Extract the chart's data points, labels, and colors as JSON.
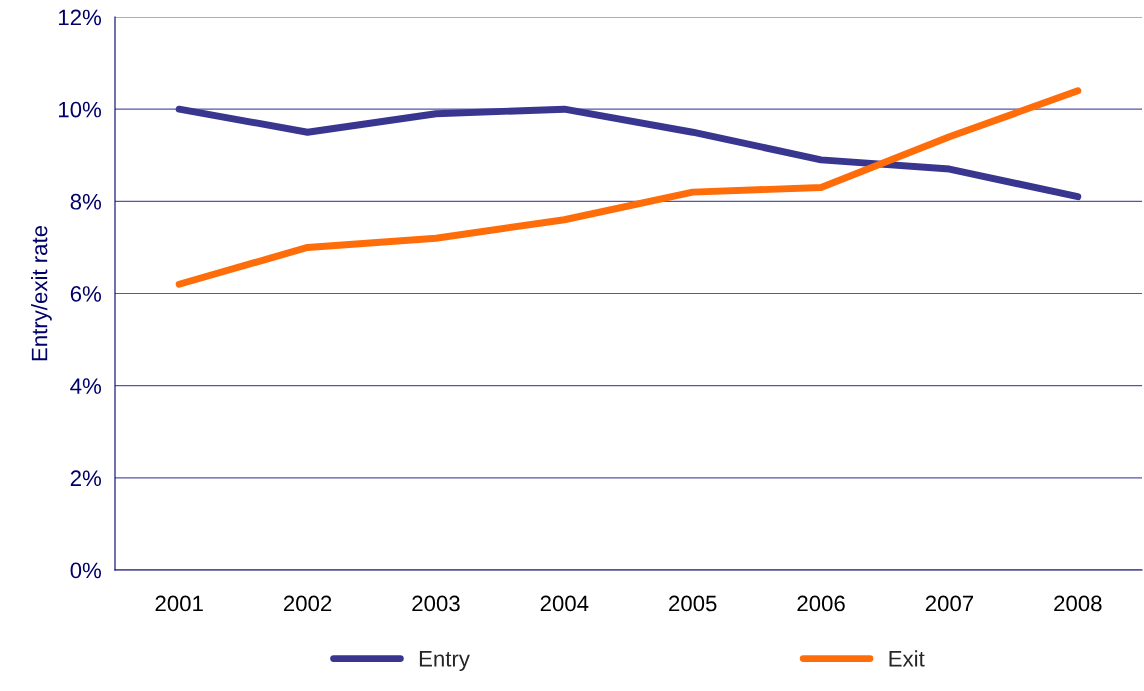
{
  "chart_data": {
    "type": "line",
    "ylabel": "Entry/exit rate",
    "categories": [
      "2001",
      "2002",
      "2003",
      "2004",
      "2005",
      "2006",
      "2007",
      "2008"
    ],
    "series": [
      {
        "name": "Entry",
        "color": "#38368f",
        "values": [
          10.0,
          9.5,
          9.9,
          10.0,
          9.5,
          8.9,
          8.7,
          8.1
        ]
      },
      {
        "name": "Exit",
        "color": "#ff6c0a",
        "values": [
          6.2,
          7.0,
          7.2,
          7.6,
          8.2,
          8.3,
          9.4,
          10.4
        ]
      }
    ],
    "ylim": [
      0,
      12
    ],
    "yticks": [
      {
        "value": 0,
        "label": "0%"
      },
      {
        "value": 2,
        "label": "2%"
      },
      {
        "value": 4,
        "label": "4%"
      },
      {
        "value": 6,
        "label": "6%"
      },
      {
        "value": 8,
        "label": "8%"
      },
      {
        "value": 10,
        "label": "10%"
      },
      {
        "value": 12,
        "label": "12%"
      }
    ],
    "grid": "y",
    "legend": "bottom",
    "marker": "none",
    "line_style": "solid"
  }
}
